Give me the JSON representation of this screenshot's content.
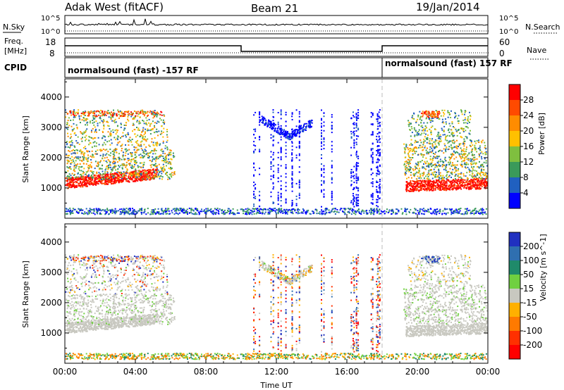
{
  "header": {
    "station": "Adak West (fitACF)",
    "beam": "Beam 21",
    "date": "19/Jan/2014"
  },
  "noise_panel": {
    "left_label": "N.Sky",
    "right_label": "N.Search",
    "tick_top": "10^5",
    "tick_bottom": "10^0"
  },
  "freq_panel": {
    "left_label_1": "Freq.",
    "left_label_2": "[MHz]",
    "right_label": "Nave",
    "left_ticks": [
      "18",
      "8"
    ],
    "right_ticks": [
      "60",
      "0"
    ],
    "freq_segments": [
      {
        "start_hour": 0,
        "end_hour": 10,
        "level": "high"
      },
      {
        "start_hour": 10,
        "end_hour": 18,
        "level": "low"
      },
      {
        "start_hour": 18,
        "end_hour": 24,
        "level": "high"
      }
    ]
  },
  "cpid_panel": {
    "label": "CPID",
    "segments": [
      {
        "start_hour": 0,
        "text": "normalsound (fast) -157 RF"
      },
      {
        "start_hour": 18,
        "text": "normalsound (fast) 157 RF"
      }
    ]
  },
  "chart_data": [
    {
      "type": "heatmap",
      "name": "power",
      "ylabel": "Slant Range [km]",
      "ylim": [
        0,
        4600
      ],
      "yticks": [
        1000,
        2000,
        3000,
        4000
      ],
      "xlim": [
        0,
        24
      ],
      "colorbar": {
        "label": "Power [dB]",
        "ticks": [
          "28",
          "24",
          "20",
          "16",
          "12",
          "8",
          "4"
        ],
        "colors": [
          "#ff0000",
          "#ff4a00",
          "#ff8c00",
          "#ffc000",
          "#7fbf3f",
          "#3a9a5a",
          "#2060c0",
          "#0000ff"
        ]
      }
    },
    {
      "type": "heatmap",
      "name": "velocity",
      "ylabel": "Slant Range [km]",
      "ylim": [
        0,
        4600
      ],
      "yticks": [
        1000,
        2000,
        3000,
        4000
      ],
      "xlim": [
        0,
        24
      ],
      "colorbar": {
        "label": "Velocity [m s^-1]",
        "ticks": [
          "200",
          "100",
          "50",
          "15",
          "-15",
          "-50",
          "-100",
          "-200"
        ],
        "colors": [
          "#2030c0",
          "#2f6fb0",
          "#1f8a6a",
          "#70d040",
          "#c8c8c0",
          "#ffb000",
          "#ff7a00",
          "#ff3000",
          "#ff0000"
        ]
      }
    }
  ],
  "x_axis": {
    "label": "Time UT",
    "ticks": [
      "00:00",
      "04:00",
      "08:00",
      "12:00",
      "16:00",
      "20:00",
      "00:00"
    ]
  }
}
